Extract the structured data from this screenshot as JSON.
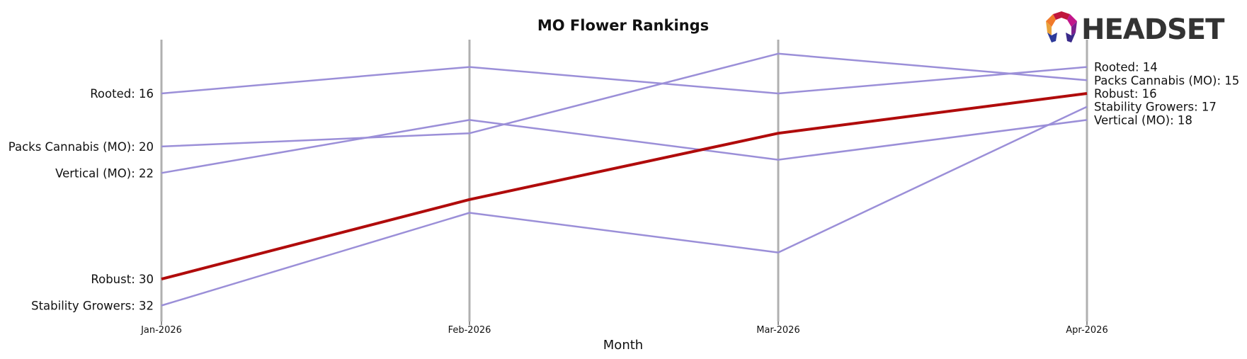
{
  "brand": {
    "logo_text": "HEADSET"
  },
  "colors": {
    "highlight": "#b00b0b",
    "other": "#9b8fd8",
    "axis": "#b0b0b0"
  },
  "chart_data": {
    "type": "line",
    "title": "MO Flower Rankings",
    "xlabel": "Month",
    "ylabel": "",
    "x": [
      "Jan-2026",
      "Feb-2026",
      "Mar-2026",
      "Apr-2026"
    ],
    "y_inverted": true,
    "grid": false,
    "highlight_series": "Robust",
    "series": [
      {
        "name": "Rooted",
        "values": [
          16,
          14,
          16,
          14
        ]
      },
      {
        "name": "Packs Cannabis (MO)",
        "values": [
          20,
          19,
          13,
          15
        ]
      },
      {
        "name": "Vertical (MO)",
        "values": [
          22,
          18,
          21,
          18
        ]
      },
      {
        "name": "Robust",
        "values": [
          30,
          24,
          19,
          16
        ]
      },
      {
        "name": "Stability Growers",
        "values": [
          32,
          25,
          28,
          17
        ]
      }
    ],
    "left_labels": [
      {
        "series": "Rooted",
        "text": "Rooted: 16"
      },
      {
        "series": "Packs Cannabis (MO)",
        "text": "Packs Cannabis (MO): 20"
      },
      {
        "series": "Vertical (MO)",
        "text": "Vertical (MO): 22"
      },
      {
        "series": "Robust",
        "text": "Robust: 30"
      },
      {
        "series": "Stability Growers",
        "text": "Stability Growers: 32"
      }
    ],
    "right_labels": [
      {
        "series": "Rooted",
        "text": "Rooted: 14"
      },
      {
        "series": "Packs Cannabis (MO)",
        "text": "Packs Cannabis (MO): 15"
      },
      {
        "series": "Robust",
        "text": "Robust: 16"
      },
      {
        "series": "Stability Growers",
        "text": "Stability Growers: 17"
      },
      {
        "series": "Vertical (MO)",
        "text": "Vertical (MO): 18"
      }
    ]
  }
}
